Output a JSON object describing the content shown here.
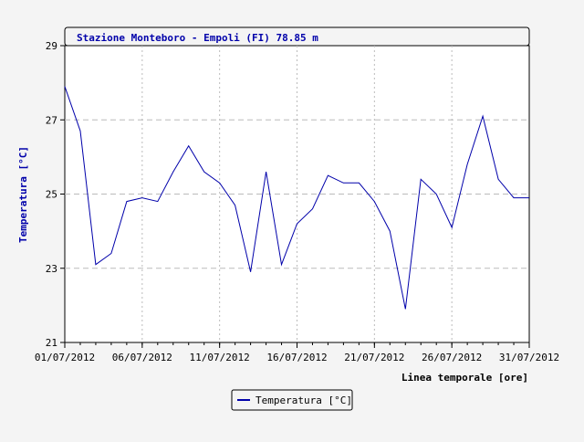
{
  "chart_data": {
    "type": "line",
    "title": "Stazione Monteboro - Empoli (FI) 78.85 m",
    "xlabel": "Linea temporale [ore]",
    "ylabel": "Temperatura [°C]",
    "ylim": [
      21,
      29
    ],
    "yticks": [
      21,
      23,
      25,
      27,
      29
    ],
    "xlim": [
      "01/07/2012",
      "31/07/2012"
    ],
    "xticks": [
      "01/07/2012",
      "06/07/2012",
      "11/07/2012",
      "16/07/2012",
      "21/07/2012",
      "26/07/2012",
      "31/07/2012"
    ],
    "grid": true,
    "legend": "bottom-center",
    "series": [
      {
        "name": "Temperatura [°C]",
        "color": "#0000aa",
        "x": [
          "01/07/2012",
          "02/07/2012",
          "03/07/2012",
          "04/07/2012",
          "05/07/2012",
          "06/07/2012",
          "07/07/2012",
          "08/07/2012",
          "09/07/2012",
          "10/07/2012",
          "11/07/2012",
          "12/07/2012",
          "13/07/2012",
          "14/07/2012",
          "15/07/2012",
          "16/07/2012",
          "17/07/2012",
          "18/07/2012",
          "19/07/2012",
          "20/07/2012",
          "21/07/2012",
          "22/07/2012",
          "23/07/2012",
          "24/07/2012",
          "25/07/2012",
          "26/07/2012",
          "27/07/2012",
          "28/07/2012",
          "29/07/2012",
          "30/07/2012",
          "31/07/2012"
        ],
        "values": [
          27.9,
          26.7,
          23.1,
          23.4,
          24.8,
          24.9,
          24.8,
          25.6,
          26.3,
          25.6,
          25.3,
          24.7,
          22.9,
          25.6,
          23.1,
          24.2,
          24.6,
          25.5,
          25.3,
          25.3,
          24.8,
          24.0,
          21.9,
          25.4,
          25.0,
          24.1,
          25.8,
          27.1,
          25.4,
          24.9,
          24.9
        ]
      }
    ]
  }
}
